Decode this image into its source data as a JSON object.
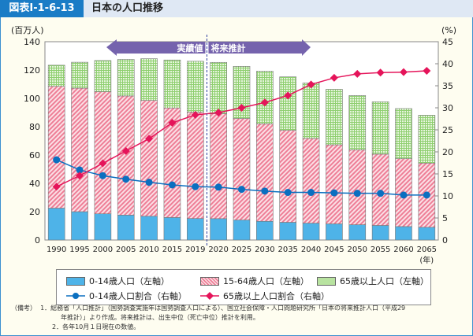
{
  "header": {
    "figure_number": "図表Ⅰ-1-6-13",
    "title": "日本の人口推移"
  },
  "chart_data": {
    "type": "bar",
    "stacked": true,
    "categories": [
      "1990",
      "1995",
      "2000",
      "2005",
      "2010",
      "2015",
      "2019",
      "2020",
      "2025",
      "2030",
      "2035",
      "2040",
      "2045",
      "2050",
      "2055",
      "2060",
      "2065"
    ],
    "x_unit_label": "(年)",
    "left_axis": {
      "label": "(百万人)",
      "ylim": [
        0,
        140
      ],
      "ticks": [
        0,
        20,
        40,
        60,
        80,
        100,
        120,
        140
      ]
    },
    "right_axis": {
      "label": "(%)",
      "ylim": [
        0,
        45
      ],
      "ticks": [
        0,
        5,
        10,
        15,
        20,
        25,
        30,
        35,
        40,
        45
      ]
    },
    "annotations": {
      "actual": "実績値",
      "projection": "将来推計",
      "divider_between": [
        "2019",
        "2020"
      ]
    },
    "series": [
      {
        "name": "0-14歳人口（左軸）",
        "kind": "bar",
        "axis": "left",
        "color": "#4eb3e8",
        "values": [
          22.5,
          20.0,
          18.5,
          17.6,
          16.8,
          15.9,
          15.2,
          15.1,
          14.1,
          13.2,
          12.5,
          11.9,
          11.4,
          10.8,
          10.3,
          9.5,
          9.0
        ]
      },
      {
        "name": "15-64歳人口（左軸）",
        "kind": "bar",
        "axis": "left",
        "color": "#f08aa0",
        "values": [
          86.0,
          87.2,
          86.2,
          84.1,
          81.7,
          77.3,
          75.1,
          74.1,
          71.7,
          68.8,
          64.9,
          59.8,
          55.8,
          52.8,
          50.3,
          47.9,
          45.3
        ]
      },
      {
        "name": "65歳以上人口（左軸）",
        "kind": "bar",
        "axis": "left",
        "color": "#8fcf70",
        "values": [
          14.9,
          18.3,
          22.0,
          25.8,
          29.5,
          33.9,
          35.9,
          36.2,
          36.8,
          37.2,
          37.8,
          39.2,
          39.2,
          38.4,
          37.0,
          35.4,
          33.8
        ]
      },
      {
        "name": "0-14歳人口割合（右軸）",
        "kind": "line",
        "axis": "right",
        "color": "#0a6fc0",
        "marker": "circle",
        "values": [
          18.2,
          15.9,
          14.6,
          13.8,
          13.1,
          12.5,
          12.1,
          12.0,
          11.5,
          11.1,
          10.8,
          10.8,
          10.7,
          10.6,
          10.6,
          10.2,
          10.2
        ]
      },
      {
        "name": "65歳以上人口割合（右軸）",
        "kind": "line",
        "axis": "right",
        "color": "#e5145a",
        "marker": "diamond",
        "values": [
          12.1,
          14.6,
          17.4,
          20.2,
          23.0,
          26.6,
          28.4,
          28.9,
          30.0,
          31.2,
          32.8,
          35.3,
          36.8,
          37.7,
          38.0,
          38.1,
          38.4
        ]
      }
    ],
    "grid": false,
    "legend_placement": "bottom"
  },
  "notes": {
    "label": "（備考）",
    "items": [
      "1．総務省「人口推計」（国勢調査実施年は国勢調査人口による）、国立社会保障・人口問題研究所「日本の将来推計人口（平成29",
      "年推計）」より作成。将来推計は、出生中位（死亡中位）推計を利用。",
      "2．各年10月１日現在の数値。"
    ]
  }
}
